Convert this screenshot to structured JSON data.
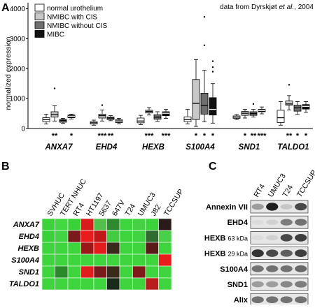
{
  "panels": {
    "a": "A",
    "b": "B",
    "c": "C"
  },
  "panel_a": {
    "source_prefix": "data from Dyrskjøt ",
    "source_etal": "et al.",
    "source_suffix": ", 2004"
  },
  "heatmap": {
    "columns": [
      "SVHUC",
      "TERT NHUC",
      "RT4",
      "HT1197",
      "5637",
      "647V",
      "T24",
      "UMUC3",
      "J82",
      "TCCSUP"
    ],
    "rows": [
      "ANXA7",
      "EHD4",
      "HEXB",
      "S100A4",
      "SND1",
      "TALDO1"
    ],
    "cells": [
      [
        "#3bd23b",
        "#42d842",
        "#3ad03a",
        "#d81c1c",
        "#52c04a",
        "#2e8a2e",
        "#3ed43e",
        "#46d046",
        "#3cd23c",
        "#2a1a1a"
      ],
      [
        "#3ad03a",
        "#42d442",
        "#7a1a1a",
        "#e81c1c",
        "#c01818",
        "#41cc41",
        "#3ed43e",
        "#40d240",
        "#2f6a2f",
        "#49d049"
      ],
      [
        "#3ed43e",
        "#3ed43e",
        "#3ed43e",
        "#9a1818",
        "#e01c1c",
        "#3a2a1c",
        "#3ed43e",
        "#3ed43e",
        "#5a1a1a",
        "#3ed43e"
      ],
      [
        "#3ed43e",
        "#3ed43e",
        "#3ed43e",
        "#3ed43e",
        "#3ed43e",
        "#3ed43e",
        "#3ed43e",
        "#3ed43e",
        "#3ed43e",
        "#e81c1c"
      ],
      [
        "#3ed43e",
        "#2a8a2a",
        "#3ed43e",
        "#e01c1c",
        "#7a1a1a",
        "#3a2a1c",
        "#3ed43e",
        "#801a1a",
        "#3ed43e",
        "#3ed43e"
      ],
      [
        "#3ed43e",
        "#3ed43e",
        "#3ed43e",
        "#3ed43e",
        "#3ed43e",
        "#1a2a1a",
        "#3ed43e",
        "#3ed43e",
        "#b81c1c",
        "#3ed43e"
      ]
    ]
  },
  "western_blot": {
    "lanes": [
      "RT4",
      "UMUC3",
      "T24",
      "TCCSUP"
    ],
    "bands": [
      {
        "name": "Annexin VII",
        "size": ""
      },
      {
        "name": "EHD4",
        "size": ""
      },
      {
        "name": "HEXB",
        "size": "63 kDa"
      },
      {
        "name": "HEXB",
        "size": "29 kDa"
      },
      {
        "name": "S100A4",
        "size": ""
      },
      {
        "name": "SND1",
        "size": ""
      },
      {
        "name": "Alix",
        "size": ""
      }
    ],
    "intensities": [
      [
        0.35,
        0.95,
        0.15,
        0.75
      ],
      [
        0.05,
        0.1,
        0.5,
        0.55
      ],
      [
        0.05,
        0.1,
        0.75,
        0.8
      ],
      [
        0.85,
        0.75,
        0.65,
        0.8
      ],
      [
        0.55,
        0.55,
        0.55,
        0.6
      ],
      [
        0.35,
        0.35,
        0.45,
        0.5
      ],
      [
        0.55,
        0.55,
        0.55,
        0.55
      ]
    ]
  },
  "chart_data": {
    "type": "box",
    "title": "",
    "xlabel": "",
    "ylabel": "normalized expression",
    "ylim": [
      0,
      4200
    ],
    "yticks": [
      0,
      1000,
      2000,
      3000,
      4000
    ],
    "legend": [
      {
        "name": "normal urothelium",
        "color": "#ffffff"
      },
      {
        "name": "NMIBC with CIS",
        "color": "#c8c8c8"
      },
      {
        "name": "NMIBC without CIS",
        "color": "#6e6e6e"
      },
      {
        "name": "MIBC",
        "color": "#111111"
      }
    ],
    "genes": [
      {
        "name": "ANXA7",
        "stars": [
          "**",
          "",
          "*"
        ],
        "boxes": [
          {
            "q1": 230,
            "med": 300,
            "q3": 360,
            "lo": 150,
            "hi": 480,
            "out": []
          },
          {
            "q1": 380,
            "med": 460,
            "q3": 560,
            "lo": 250,
            "hi": 760,
            "out": [
              1340
            ]
          },
          {
            "q1": 210,
            "med": 270,
            "q3": 300,
            "lo": 170,
            "hi": 340,
            "out": []
          },
          {
            "q1": 360,
            "med": 410,
            "q3": 450,
            "lo": 320,
            "hi": 480,
            "out": []
          }
        ]
      },
      {
        "name": "EHD4",
        "stars": [
          "***",
          "**",
          ""
        ],
        "boxes": [
          {
            "q1": 150,
            "med": 190,
            "q3": 230,
            "lo": 110,
            "hi": 280,
            "out": []
          },
          {
            "q1": 350,
            "med": 430,
            "q3": 480,
            "lo": 250,
            "hi": 620,
            "out": [
              780
            ]
          },
          {
            "q1": 300,
            "med": 350,
            "q3": 380,
            "lo": 260,
            "hi": 430,
            "out": []
          },
          {
            "q1": 200,
            "med": 250,
            "q3": 290,
            "lo": 160,
            "hi": 340,
            "out": []
          }
        ]
      },
      {
        "name": "HEXB",
        "stars": [
          "***",
          "",
          "***"
        ],
        "boxes": [
          {
            "q1": 190,
            "med": 250,
            "q3": 350,
            "lo": 130,
            "hi": 440,
            "out": []
          },
          {
            "q1": 520,
            "med": 570,
            "q3": 610,
            "lo": 450,
            "hi": 700,
            "out": []
          },
          {
            "q1": 310,
            "med": 380,
            "q3": 460,
            "lo": 240,
            "hi": 560,
            "out": []
          },
          {
            "q1": 430,
            "med": 510,
            "q3": 560,
            "lo": 340,
            "hi": 640,
            "out": []
          }
        ]
      },
      {
        "name": "S100A4",
        "stars": [
          "*",
          "*",
          "*"
        ],
        "boxes": [
          {
            "q1": 230,
            "med": 300,
            "q3": 390,
            "lo": 150,
            "hi": 640,
            "out": []
          },
          {
            "q1": 300,
            "med": 840,
            "q3": 1640,
            "lo": 70,
            "hi": 2300,
            "out": []
          },
          {
            "q1": 480,
            "med": 770,
            "q3": 1180,
            "lo": 220,
            "hi": 1950,
            "out": [
              2780,
              3730
            ]
          },
          {
            "q1": 450,
            "med": 640,
            "q3": 1030,
            "lo": 180,
            "hi": 1500,
            "out": [
              1900,
              2050,
              2250
            ]
          }
        ]
      },
      {
        "name": "SND1",
        "stars": [
          "*",
          "**",
          "***"
        ],
        "boxes": [
          {
            "q1": 340,
            "med": 380,
            "q3": 420,
            "lo": 300,
            "hi": 470,
            "out": []
          },
          {
            "q1": 440,
            "med": 510,
            "q3": 570,
            "lo": 350,
            "hi": 640,
            "out": []
          },
          {
            "q1": 440,
            "med": 500,
            "q3": 560,
            "lo": 380,
            "hi": 640,
            "out": [
              820
            ]
          },
          {
            "q1": 560,
            "med": 600,
            "q3": 640,
            "lo": 490,
            "hi": 720,
            "out": []
          }
        ]
      },
      {
        "name": "TALDO1",
        "stars": [
          "**",
          "*",
          "*"
        ],
        "boxes": [
          {
            "q1": 200,
            "med": 360,
            "q3": 610,
            "lo": 110,
            "hi": 900,
            "out": []
          },
          {
            "q1": 780,
            "med": 820,
            "q3": 920,
            "lo": 620,
            "hi": 1100,
            "out": [
              1460
            ]
          },
          {
            "q1": 580,
            "med": 690,
            "q3": 780,
            "lo": 470,
            "hi": 900,
            "out": []
          },
          {
            "q1": 650,
            "med": 740,
            "q3": 800,
            "lo": 540,
            "hi": 900,
            "out": []
          }
        ]
      }
    ]
  }
}
